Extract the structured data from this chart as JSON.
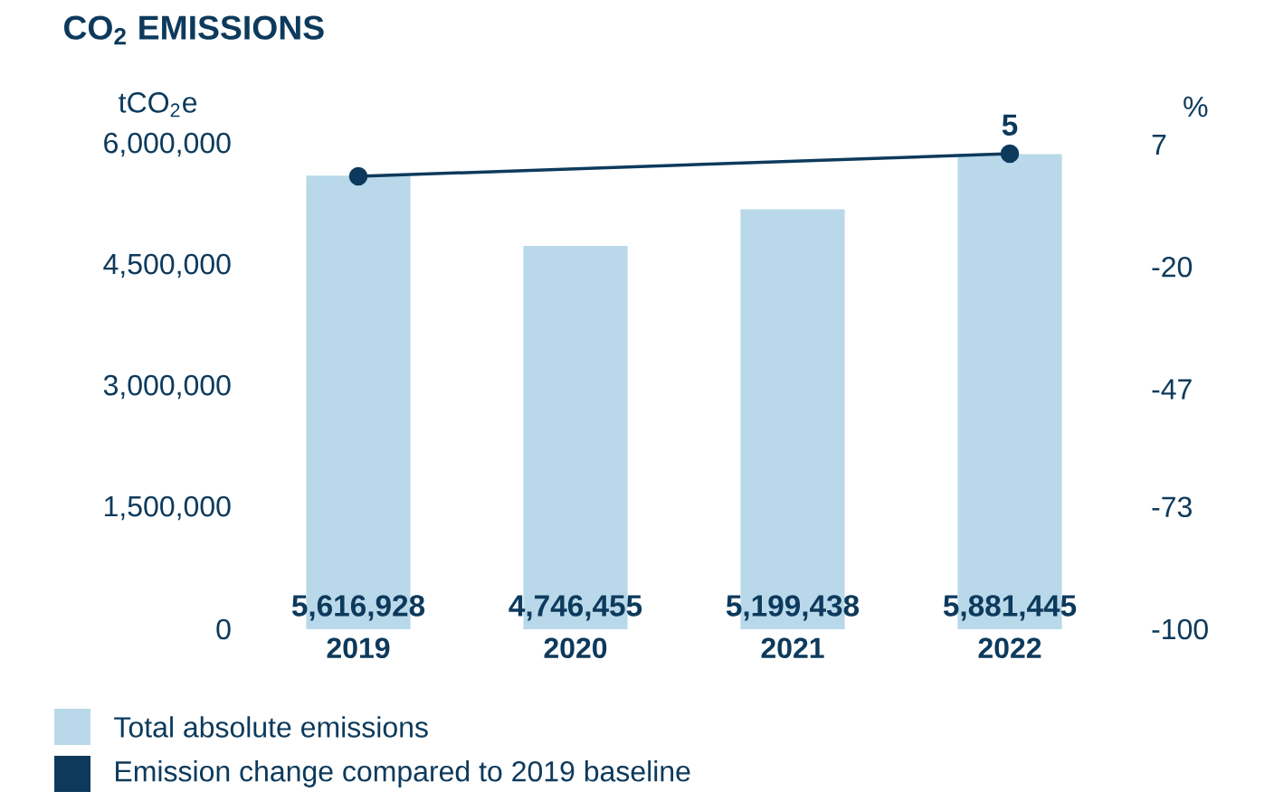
{
  "chart_data": {
    "type": "bar",
    "title": "CO$_{2}$ EMISSIONS",
    "ylabel": "tCO$_{2}$e",
    "y2label": "%",
    "categories": [
      "2019",
      "2020",
      "2021",
      "2022"
    ],
    "series": [
      {
        "name": "Total absolute emissions",
        "color": "#b9d9ea",
        "values": [
          5616928,
          4746455,
          5199438,
          5881445
        ],
        "value_labels": [
          "5,616,928",
          "4,746,455",
          "5,199,438",
          "5,881,445"
        ]
      },
      {
        "name": "Emission change compared to 2019 baseline",
        "type": "line",
        "axis": "y2",
        "color": "#0d3a5c",
        "marker": "circle",
        "values": [
          0,
          null,
          null,
          5
        ],
        "value_labels": [
          null,
          null,
          null,
          "5"
        ]
      }
    ],
    "ylim": [
      0,
      6000000
    ],
    "yticks": [
      0,
      {
        "value": 1500000,
        "label": "1,500,000"
      },
      {
        "value": 3000000,
        "label": "3,000,000"
      },
      {
        "value": 4500000,
        "label": "4,500,000"
      },
      {
        "value": 6000000,
        "label": "6,000,000"
      }
    ],
    "y2lim": [
      -100,
      7
    ],
    "y2ticks": [
      -100,
      -73,
      -47,
      -20,
      7
    ],
    "legend": "bottom"
  }
}
